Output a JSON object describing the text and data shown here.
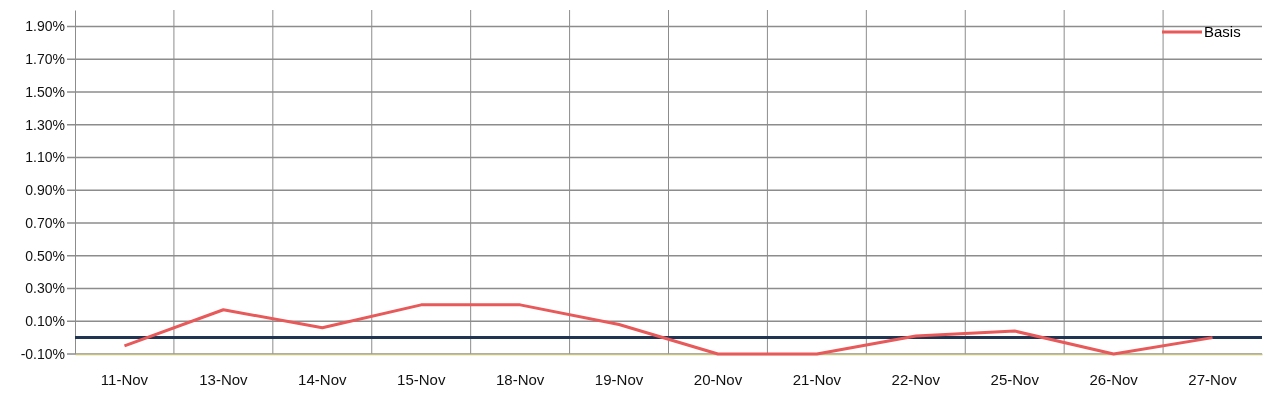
{
  "chart_data": {
    "type": "line",
    "categories": [
      "11-Nov",
      "13-Nov",
      "14-Nov",
      "15-Nov",
      "18-Nov",
      "19-Nov",
      "20-Nov",
      "21-Nov",
      "22-Nov",
      "25-Nov",
      "26-Nov",
      "27-Nov"
    ],
    "series": [
      {
        "name": "Basis",
        "color": "#e8595a",
        "values": [
          -0.05,
          0.17,
          0.06,
          0.2,
          0.2,
          0.08,
          -0.1,
          -0.1,
          0.01,
          0.04,
          -0.1,
          0.0
        ]
      }
    ],
    "ylim": [
      -0.1,
      2.0
    ],
    "yticks": [
      {
        "value": -0.1,
        "label": "-0.10%"
      },
      {
        "value": 0.1,
        "label": "0.10%"
      },
      {
        "value": 0.3,
        "label": "0.30%"
      },
      {
        "value": 0.5,
        "label": "0.50%"
      },
      {
        "value": 0.7,
        "label": "0.70%"
      },
      {
        "value": 0.9,
        "label": "0.90%"
      },
      {
        "value": 1.1,
        "label": "1.10%"
      },
      {
        "value": 1.3,
        "label": "1.30%"
      },
      {
        "value": 1.5,
        "label": "1.50%"
      },
      {
        "value": 1.7,
        "label": "1.70%"
      },
      {
        "value": 1.9,
        "label": "1.90%"
      }
    ],
    "ref_lines": [
      {
        "axis": "y",
        "value": 0,
        "color": "#1f3552"
      }
    ],
    "grid": true,
    "legend": "top right",
    "marker": "none",
    "line_style": "solid"
  }
}
